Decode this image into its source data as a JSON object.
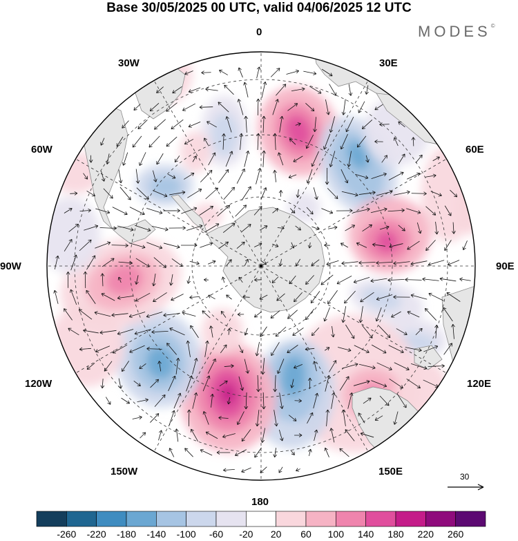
{
  "title": "Base 30/05/2025 00 UTC, valid 04/06/2025 12 UTC",
  "brand": "MODES",
  "brand_mark": "©",
  "meridian_labels": {
    "m0": "0",
    "m30e": "30E",
    "m60e": "60E",
    "m90e": "90E",
    "m120e": "120E",
    "m150e": "150E",
    "m180": "180",
    "m150w": "150W",
    "m120w": "120W",
    "m90w": "90W",
    "m60w": "60W",
    "m30w": "30W"
  },
  "reference_vector": {
    "value": "30",
    "icon": "reference-arrow-icon"
  },
  "colorbar": {
    "colors": [
      "#143e5c",
      "#1f6691",
      "#3f8cc0",
      "#6ba7d2",
      "#a6c4e3",
      "#ccd7ec",
      "#e6e3f0",
      "#ffffff",
      "#f9d7dd",
      "#f6b3c4",
      "#ef84ad",
      "#e04e9d",
      "#c41c89",
      "#8f0b7c",
      "#5c0a72"
    ],
    "ticks": [
      "-260",
      "-220",
      "-180",
      "-140",
      "-100",
      "-60",
      "-20",
      "20",
      "60",
      "100",
      "140",
      "180",
      "220",
      "260"
    ]
  },
  "colors": {
    "land": "#e6e6e6",
    "coast": "#8a8a8a",
    "grid": "#333333",
    "vector": "#111111"
  }
}
